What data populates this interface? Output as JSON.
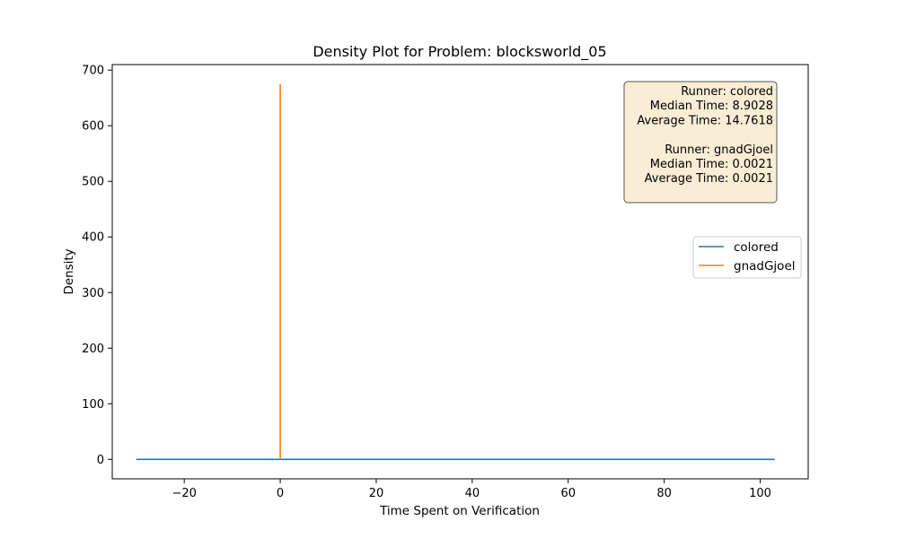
{
  "chart_data": {
    "type": "line",
    "title": "Density Plot for Problem: blocksworld_05",
    "xlabel": "Time Spent on Verification",
    "ylabel": "Density",
    "xlim": [
      -35,
      110
    ],
    "ylim": [
      -35,
      710
    ],
    "xticks": [
      -20,
      0,
      20,
      40,
      60,
      80,
      100
    ],
    "yticks": [
      0,
      100,
      200,
      300,
      400,
      500,
      600,
      700
    ],
    "grid": false,
    "legend_position": "center-right",
    "series": [
      {
        "name": "colored",
        "color": "#1f77b4",
        "x": [
          -30,
          -10,
          10,
          30,
          50,
          70,
          90,
          103
        ],
        "y": [
          0,
          0,
          0,
          0,
          0,
          0,
          0,
          0
        ]
      },
      {
        "name": "gnadGjoel",
        "color": "#ff7f0e",
        "x": [
          0,
          0,
          0
        ],
        "y": [
          0,
          675,
          0
        ]
      }
    ],
    "annotation": {
      "lines": [
        "Runner: colored",
        "Median Time: 8.9028",
        "Average Time: 14.7618",
        "",
        "Runner: gnadGjoel",
        "Median Time: 0.0021",
        "Average Time: 0.0021"
      ],
      "background": "#f5deb3",
      "position": "top-right"
    }
  }
}
